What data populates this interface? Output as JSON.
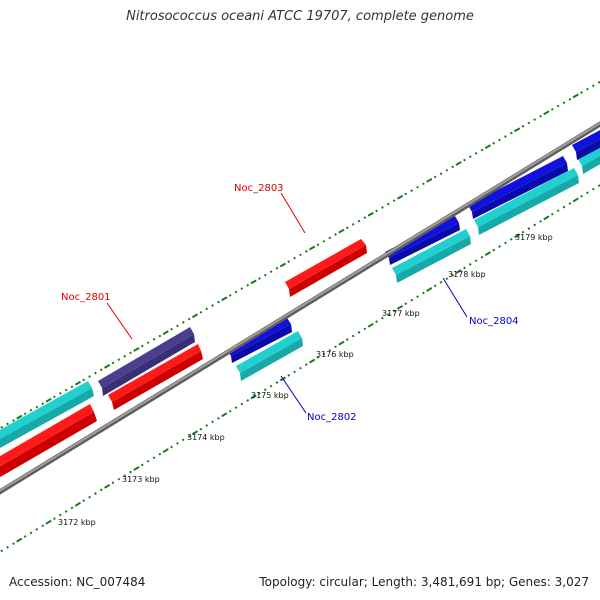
{
  "title": "Nitrosococcus oceani ATCC 19707, complete genome",
  "footer": {
    "accession": "Accession: NC_007484",
    "summary": "Topology: circular; Length: 3,481,691 bp; Genes: 3,027"
  },
  "colors": {
    "backbone": "#888888",
    "forward_cds": "#ff1a1a",
    "forward_strand_other": "#4b3d8f",
    "reverse_cds": "#1010e0",
    "reverse_strand_other": "#20d0d0",
    "tick": "#1a7a1a",
    "forward_label": "#e00000",
    "reverse_label": "#0000cc"
  },
  "scale_labels": [
    "3172 kbp",
    "3173 kbp",
    "3174 kbp",
    "3175 kbp",
    "3176 kbp",
    "3177 kbp",
    "3178 kbp",
    "3179 kbp"
  ],
  "gene_labels": [
    {
      "text": "Noc_2801",
      "strand": "forward"
    },
    {
      "text": "Noc_2803",
      "strand": "forward"
    },
    {
      "text": "Noc_2802",
      "strand": "reverse"
    },
    {
      "text": "Noc_2804",
      "strand": "reverse"
    }
  ]
}
